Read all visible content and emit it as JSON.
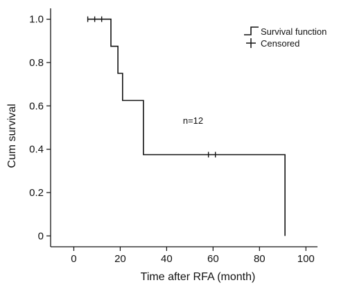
{
  "chart_data": {
    "type": "line",
    "subtype": "kaplan-meier",
    "title": "",
    "xlabel": "Time after RFA (month)",
    "ylabel": "Cum survival",
    "xlim": [
      -10,
      105
    ],
    "ylim": [
      -0.05,
      1.05
    ],
    "x_ticks": [
      0,
      20,
      40,
      60,
      80,
      100
    ],
    "x_tick_labels": [
      "0",
      "20",
      "40",
      "60",
      "80",
      "100"
    ],
    "y_ticks": [
      0,
      0.2,
      0.4,
      0.6,
      0.8,
      1.0
    ],
    "y_tick_labels": [
      "0",
      "0.2",
      "0.4",
      "0.6",
      "0.8",
      "1.0"
    ],
    "grid": false,
    "legend_position": "top-right",
    "series": [
      {
        "name": "Survival function",
        "step_x": [
          6,
          16,
          16,
          19,
          19,
          21,
          21,
          30,
          30,
          91,
          91
        ],
        "step_y": [
          1.0,
          1.0,
          0.875,
          0.875,
          0.75,
          0.75,
          0.625,
          0.625,
          0.375,
          0.375,
          0.0
        ]
      },
      {
        "name": "Censored",
        "x": [
          6,
          9,
          12,
          58,
          61
        ],
        "y": [
          1.0,
          1.0,
          1.0,
          0.375,
          0.375
        ]
      }
    ],
    "annotations": [
      {
        "text": "n=12",
        "x": 50,
        "y": 0.53
      }
    ],
    "line_color": "#111111"
  }
}
